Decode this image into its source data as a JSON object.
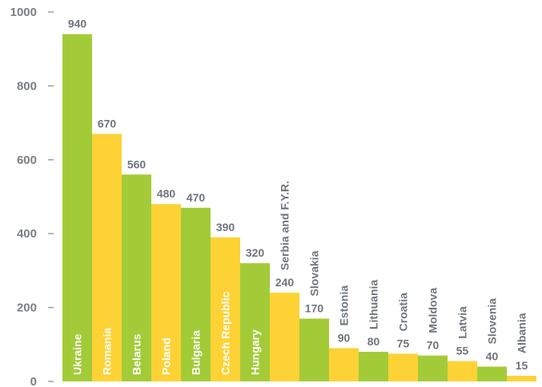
{
  "chart_data": {
    "type": "bar",
    "title": "",
    "xlabel": "",
    "ylabel": "",
    "ylim": [
      0,
      1000
    ],
    "yticks": [
      0,
      200,
      400,
      600,
      800,
      1000
    ],
    "grid": false,
    "legend": "none",
    "categories": [
      "Ukraine",
      "Romania",
      "Belarus",
      "Poland",
      "Bulgaria",
      "Czech Republic",
      "Hungary",
      "Serbia and F.Y.R.",
      "Slovakia",
      "Estonia",
      "Lithuania",
      "Croatia",
      "Moldova",
      "Latvia",
      "Slovenia",
      "Albania"
    ],
    "values": [
      940,
      670,
      560,
      480,
      470,
      390,
      320,
      240,
      170,
      90,
      80,
      75,
      70,
      55,
      40,
      15
    ],
    "value_labels": [
      "940",
      "670",
      "560",
      "480",
      "470",
      "390",
      "320",
      "240",
      "170",
      "90",
      "80",
      "75",
      "70",
      "55",
      "40",
      "15"
    ],
    "bar_colors": [
      "#a3cb38",
      "#fdd235",
      "#a3cb38",
      "#fdd235",
      "#a3cb38",
      "#fdd235",
      "#a3cb38",
      "#fdd235",
      "#a3cb38",
      "#fdd235",
      "#a3cb38",
      "#fdd235",
      "#a3cb38",
      "#fdd235",
      "#a3cb38",
      "#fdd235"
    ],
    "colors": {
      "green": "#a3cb38",
      "yellow": "#fdd235",
      "label_inside": "#ffffff",
      "label_outside": "#6e757b",
      "axis_text": "#7a7f84"
    }
  }
}
